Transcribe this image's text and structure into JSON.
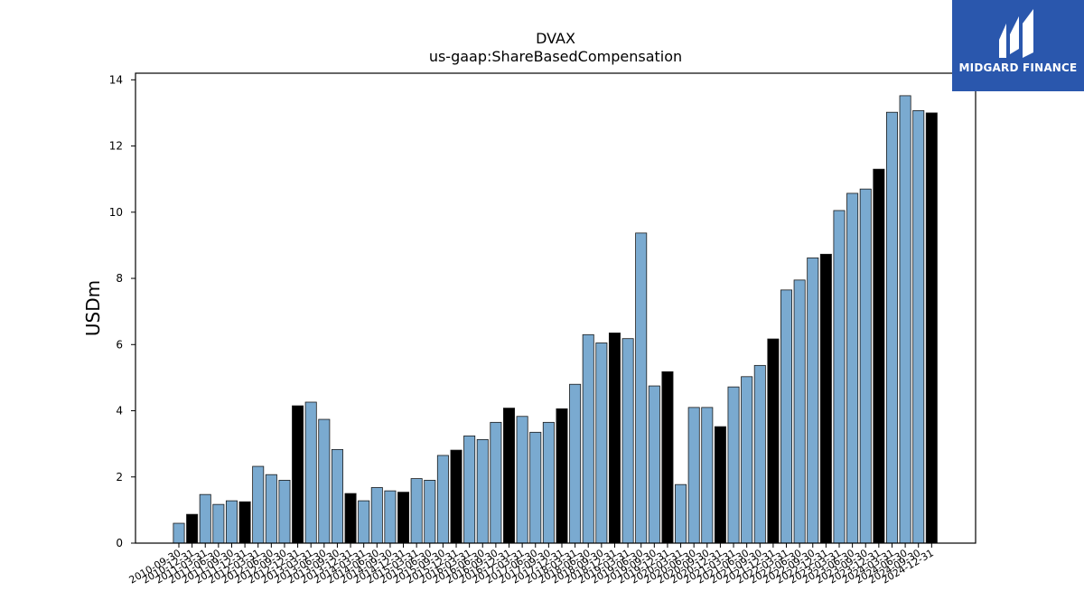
{
  "brand": {
    "name": "MIDGARD FINANCE"
  },
  "chart_data": {
    "type": "bar",
    "title": "DVAX",
    "subtitle": "us-gaap:ShareBasedCompensation",
    "xlabel": "",
    "ylabel": "USDm",
    "ylim": [
      0,
      14.2
    ],
    "yticks": [
      0,
      2,
      4,
      6,
      8,
      10,
      12,
      14
    ],
    "grid": false,
    "colors": {
      "quarter": "#7aaad0",
      "year_end": "#000000",
      "edge": "#1a1a1a"
    },
    "categories": [
      "2010-09-30",
      "2010-12-31",
      "2011-03-31",
      "2011-06-30",
      "2011-09-30",
      "2011-12-31",
      "2012-03-31",
      "2012-06-30",
      "2012-09-30",
      "2012-12-31",
      "2013-03-31",
      "2013-06-30",
      "2013-09-30",
      "2013-12-31",
      "2014-03-31",
      "2014-06-30",
      "2014-09-30",
      "2014-12-31",
      "2015-03-31",
      "2015-06-30",
      "2015-09-30",
      "2015-12-31",
      "2016-03-31",
      "2016-06-30",
      "2016-09-30",
      "2016-12-31",
      "2017-03-31",
      "2017-06-30",
      "2017-09-30",
      "2017-12-31",
      "2018-03-31",
      "2018-06-30",
      "2018-09-30",
      "2018-12-31",
      "2019-03-31",
      "2019-06-30",
      "2019-09-30",
      "2019-12-31",
      "2020-03-31",
      "2020-06-30",
      "2020-09-30",
      "2020-12-31",
      "2021-03-31",
      "2021-06-30",
      "2021-09-30",
      "2021-12-31",
      "2022-03-31",
      "2022-06-30",
      "2022-09-30",
      "2022-12-31",
      "2023-03-31",
      "2023-06-30",
      "2023-09-30",
      "2023-12-31",
      "2024-03-31",
      "2024-06-30",
      "2024-09-30",
      "2024-12-31"
    ],
    "values": [
      0.6,
      0.87,
      1.47,
      1.17,
      1.28,
      1.25,
      2.32,
      2.07,
      1.9,
      4.15,
      4.26,
      3.74,
      2.83,
      1.5,
      1.28,
      1.68,
      1.58,
      1.54,
      1.95,
      1.9,
      2.65,
      2.81,
      3.24,
      3.13,
      3.65,
      4.08,
      3.83,
      3.35,
      3.65,
      4.06,
      4.8,
      6.3,
      6.05,
      6.35,
      6.18,
      9.37,
      4.75,
      5.18,
      1.77,
      4.1,
      4.1,
      3.52,
      4.72,
      5.03,
      5.37,
      6.17,
      7.65,
      7.95,
      8.62,
      8.73,
      10.05,
      10.57,
      10.7,
      11.3,
      13.02,
      13.52,
      13.07,
      13.0
    ]
  }
}
